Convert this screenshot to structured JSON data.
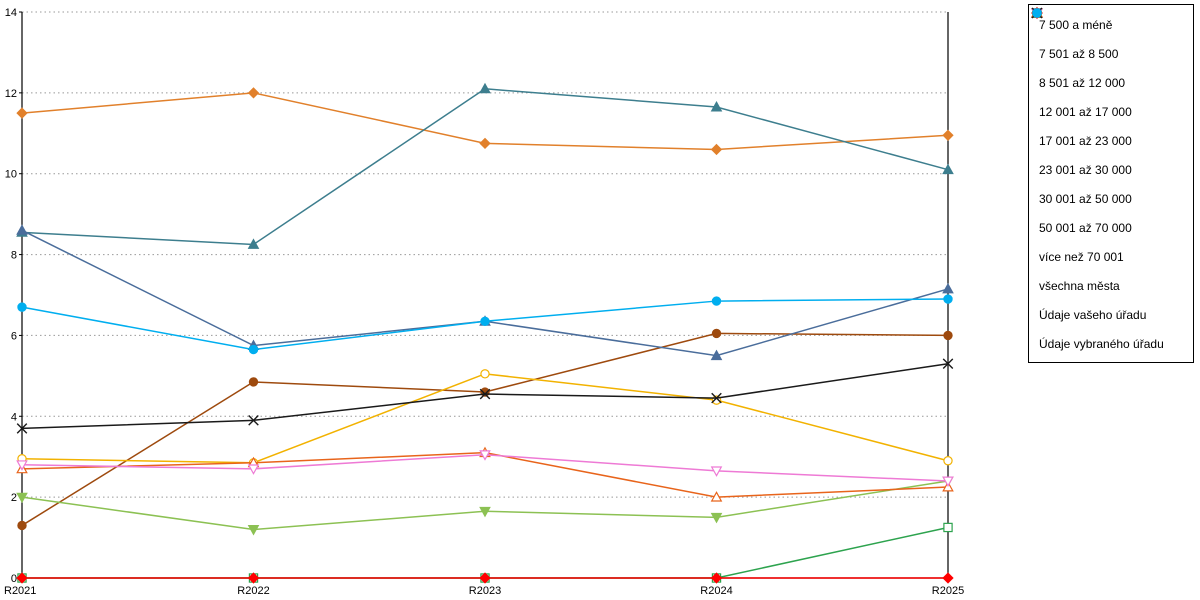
{
  "chart_data": {
    "type": "line",
    "title": "",
    "xlabel": "",
    "ylabel": "",
    "x_categories": [
      "R2021",
      "R2022",
      "R2023",
      "R2024",
      "R2025"
    ],
    "ylim": [
      0,
      14
    ],
    "ytick_step": 2,
    "grid": "horizontal-dotted",
    "legend_position": "right",
    "series": [
      {
        "name": "7 500 a méně",
        "color": "#E1802B",
        "marker": "diamond",
        "filled": true,
        "values": [
          11.5,
          12.0,
          10.75,
          10.6,
          10.95
        ]
      },
      {
        "name": "7 501 až 8 500",
        "color": "#9E4A0E",
        "marker": "circle",
        "filled": true,
        "values": [
          1.3,
          4.85,
          4.6,
          6.05,
          6.0
        ]
      },
      {
        "name": "8 501 až 12 000",
        "color": "#3D7E8E",
        "marker": "triangle-up",
        "filled": true,
        "values": [
          8.55,
          8.25,
          12.1,
          11.65,
          10.1
        ]
      },
      {
        "name": "12 001 až 17 000",
        "color": "#4A6D9B",
        "marker": "triangle-up",
        "filled": true,
        "values": [
          8.6,
          5.75,
          6.35,
          5.5,
          7.15
        ]
      },
      {
        "name": "17 001 až 23 000",
        "color": "#8CC153",
        "marker": "triangle-down",
        "filled": true,
        "values": [
          2.0,
          1.2,
          1.65,
          1.5,
          2.4
        ]
      },
      {
        "name": "23 001 až 30 000",
        "color": "#2DA34E",
        "marker": "square",
        "filled": false,
        "values": [
          0,
          0,
          0,
          0,
          1.25
        ]
      },
      {
        "name": "30 001 až 50 000",
        "color": "#F2B200",
        "marker": "circle",
        "filled": false,
        "values": [
          2.95,
          2.85,
          5.05,
          4.4,
          2.9
        ]
      },
      {
        "name": "50 001 až 70 000",
        "color": "#E8641B",
        "marker": "triangle-up",
        "filled": false,
        "values": [
          2.7,
          2.85,
          3.1,
          2.0,
          2.25
        ]
      },
      {
        "name": "více než 70 001",
        "color": "#EE7AD5",
        "marker": "triangle-down",
        "filled": false,
        "values": [
          2.8,
          2.7,
          3.05,
          2.65,
          2.4
        ]
      },
      {
        "name": "všechna města",
        "color": "#1A1A1A",
        "marker": "x",
        "filled": true,
        "values": [
          3.7,
          3.9,
          4.55,
          4.45,
          5.3
        ]
      },
      {
        "name": "Údaje vašeho úřadu",
        "color": "#FF0000",
        "marker": "diamond",
        "filled": true,
        "values": [
          0,
          0,
          0,
          0,
          0
        ]
      },
      {
        "name": "Údaje vybraného úřadu",
        "color": "#00AEEF",
        "marker": "circle",
        "filled": true,
        "values": [
          6.7,
          5.65,
          6.35,
          6.85,
          6.9
        ]
      }
    ]
  }
}
